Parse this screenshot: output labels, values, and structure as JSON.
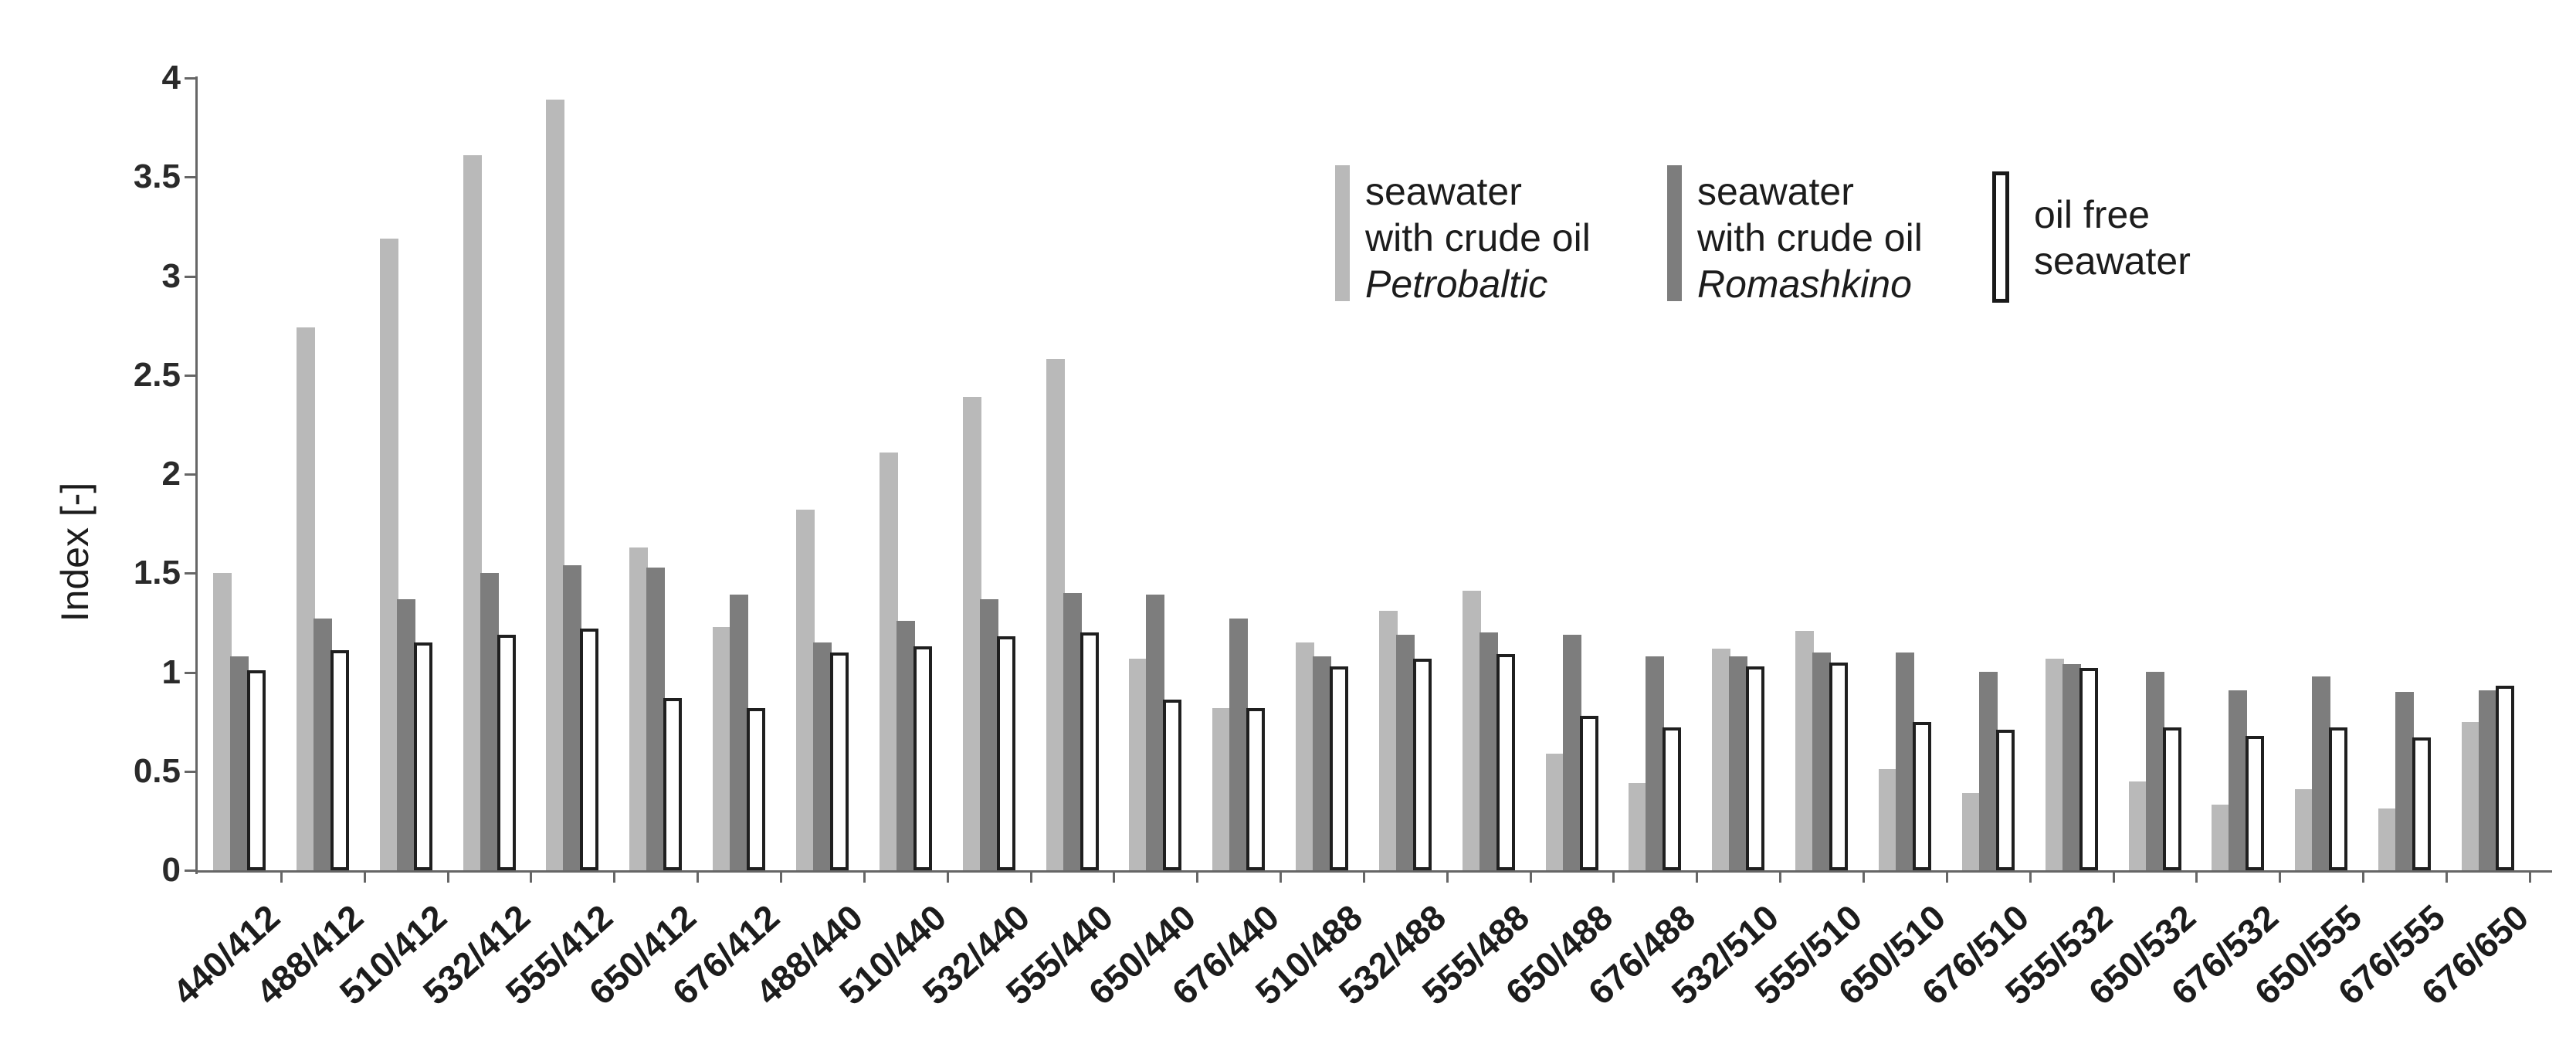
{
  "chart_data": {
    "type": "bar",
    "title": "",
    "xlabel": "",
    "ylabel": "Index  [-]",
    "ylim": [
      0,
      4
    ],
    "yticks": [
      0,
      0.5,
      1,
      1.5,
      2,
      2.5,
      3,
      3.5,
      4
    ],
    "grid": false,
    "legend_position": "top-right",
    "categories": [
      "440/412",
      "488/412",
      "510/412",
      "532/412",
      "555/412",
      "650/412",
      "676/412",
      "488/440",
      "510/440",
      "532/440",
      "555/440",
      "650/440",
      "676/440",
      "510/488",
      "532/488",
      "555/488",
      "650/488",
      "676/488",
      "532/510",
      "555/510",
      "650/510",
      "676/510",
      "555/532",
      "650/532",
      "676/532",
      "650/555",
      "676/555",
      "676/650"
    ],
    "series": [
      {
        "name": "seawater with crude oil Petrobaltic",
        "color": "#b9b9b9",
        "style": "filled",
        "values": [
          1.5,
          2.74,
          3.19,
          3.61,
          3.89,
          1.63,
          1.23,
          1.82,
          2.11,
          2.39,
          2.58,
          1.07,
          0.82,
          1.15,
          1.31,
          1.41,
          0.59,
          0.44,
          1.12,
          1.21,
          0.51,
          0.39,
          1.07,
          0.45,
          0.33,
          0.41,
          0.31,
          0.75
        ]
      },
      {
        "name": "seawater with crude oil Romashkino",
        "color": "#7d7d7d",
        "style": "filled",
        "values": [
          1.08,
          1.27,
          1.37,
          1.5,
          1.54,
          1.53,
          1.39,
          1.15,
          1.26,
          1.37,
          1.4,
          1.39,
          1.27,
          1.08,
          1.19,
          1.2,
          1.19,
          1.08,
          1.08,
          1.1,
          1.1,
          1.0,
          1.04,
          1.0,
          0.91,
          0.98,
          0.9,
          0.91
        ]
      },
      {
        "name": "oil free seawater",
        "color": "#ffffff",
        "outline": "#1f1f1f",
        "style": "outlined",
        "values": [
          1.01,
          1.11,
          1.15,
          1.19,
          1.22,
          0.87,
          0.82,
          1.1,
          1.13,
          1.18,
          1.2,
          0.86,
          0.82,
          1.03,
          1.07,
          1.09,
          0.78,
          0.72,
          1.03,
          1.05,
          0.75,
          0.71,
          1.02,
          0.72,
          0.68,
          0.72,
          0.67,
          0.93
        ]
      }
    ]
  },
  "legend": {
    "items": [
      {
        "line1": "seawater",
        "line2": "with crude oil",
        "line3": "Petrobaltic"
      },
      {
        "line1": "seawater",
        "line2": "with crude oil",
        "line3": "Romashkino"
      },
      {
        "line1": "oil free",
        "line2": "seawater",
        "line3": ""
      }
    ]
  }
}
